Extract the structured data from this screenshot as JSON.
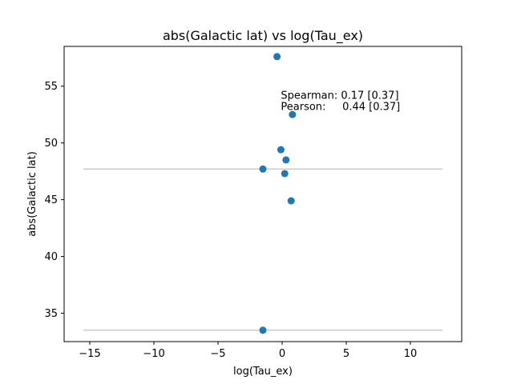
{
  "chart_data": {
    "type": "scatter",
    "title": "abs(Galactic lat) vs log(Tau_ex)",
    "xlabel": "log(Tau_ex)",
    "ylabel": "abs(Galactic lat)",
    "xlim": [
      -17,
      14
    ],
    "ylim": [
      32.5,
      58.5
    ],
    "xticks": [
      -15,
      -10,
      -5,
      0,
      5,
      10
    ],
    "xtick_labels": [
      "−15",
      "−10",
      "−5",
      "0",
      "5",
      "10"
    ],
    "yticks": [
      35,
      40,
      45,
      50,
      55
    ],
    "ytick_labels": [
      "35",
      "40",
      "45",
      "50",
      "55"
    ],
    "grid": false,
    "marker_color": "#1f77b4",
    "hline_color": "#cccccc",
    "points": [
      {
        "x": -0.4,
        "y": 57.6
      },
      {
        "x": 0.8,
        "y": 52.5
      },
      {
        "x": -0.1,
        "y": 49.4
      },
      {
        "x": 0.3,
        "y": 48.5
      },
      {
        "x": -1.5,
        "y": 47.7
      },
      {
        "x": 0.2,
        "y": 47.3
      },
      {
        "x": 0.7,
        "y": 44.9
      },
      {
        "x": -1.5,
        "y": 33.5
      }
    ],
    "hlines": [
      {
        "y": 47.7,
        "xmin": -15.5,
        "xmax": 12.5
      },
      {
        "y": 33.5,
        "xmin": -15.5,
        "xmax": 12.5
      }
    ],
    "annotations": [
      {
        "text": "Spearman: 0.17 [0.37]",
        "x": -0.1,
        "y": 53.9
      },
      {
        "text": "Pearson:     0.44 [0.37]",
        "x": -0.1,
        "y": 52.9
      }
    ]
  }
}
